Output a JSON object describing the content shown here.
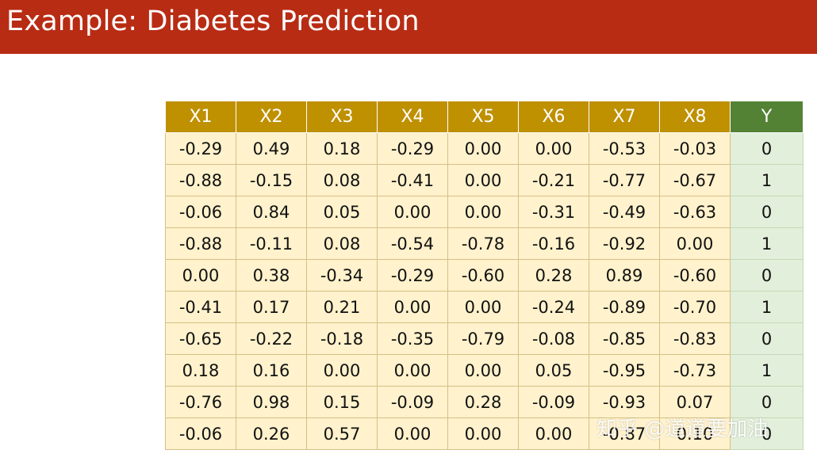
{
  "slide": {
    "title": "Example: Diabetes Prediction",
    "watermark": "知乎 @道道要加油",
    "colors": {
      "title_bar": "#b82c14",
      "feature_header": "#bf9000",
      "label_header": "#548235",
      "feature_cell": "#fff2cc",
      "label_cell": "#e2efda"
    }
  },
  "table": {
    "headers": [
      "X1",
      "X2",
      "X3",
      "X4",
      "X5",
      "X6",
      "X7",
      "X8",
      "Y"
    ],
    "rows": [
      [
        "-0.29",
        "0.49",
        "0.18",
        "-0.29",
        "0.00",
        "0.00",
        "-0.53",
        "-0.03",
        "0"
      ],
      [
        "-0.88",
        "-0.15",
        "0.08",
        "-0.41",
        "0.00",
        "-0.21",
        "-0.77",
        "-0.67",
        "1"
      ],
      [
        "-0.06",
        "0.84",
        "0.05",
        "0.00",
        "0.00",
        "-0.31",
        "-0.49",
        "-0.63",
        "0"
      ],
      [
        "-0.88",
        "-0.11",
        "0.08",
        "-0.54",
        "-0.78",
        "-0.16",
        "-0.92",
        "0.00",
        "1"
      ],
      [
        "0.00",
        "0.38",
        "-0.34",
        "-0.29",
        "-0.60",
        "0.28",
        "0.89",
        "-0.60",
        "0"
      ],
      [
        "-0.41",
        "0.17",
        "0.21",
        "0.00",
        "0.00",
        "-0.24",
        "-0.89",
        "-0.70",
        "1"
      ],
      [
        "-0.65",
        "-0.22",
        "-0.18",
        "-0.35",
        "-0.79",
        "-0.08",
        "-0.85",
        "-0.83",
        "0"
      ],
      [
        "0.18",
        "0.16",
        "0.00",
        "0.00",
        "0.00",
        "0.05",
        "-0.95",
        "-0.73",
        "1"
      ],
      [
        "-0.76",
        "0.98",
        "0.15",
        "-0.09",
        "0.28",
        "-0.09",
        "-0.93",
        "0.07",
        "0"
      ],
      [
        "-0.06",
        "0.26",
        "0.57",
        "0.00",
        "0.00",
        "0.00",
        "-0.87",
        "0.10",
        "0"
      ]
    ]
  }
}
